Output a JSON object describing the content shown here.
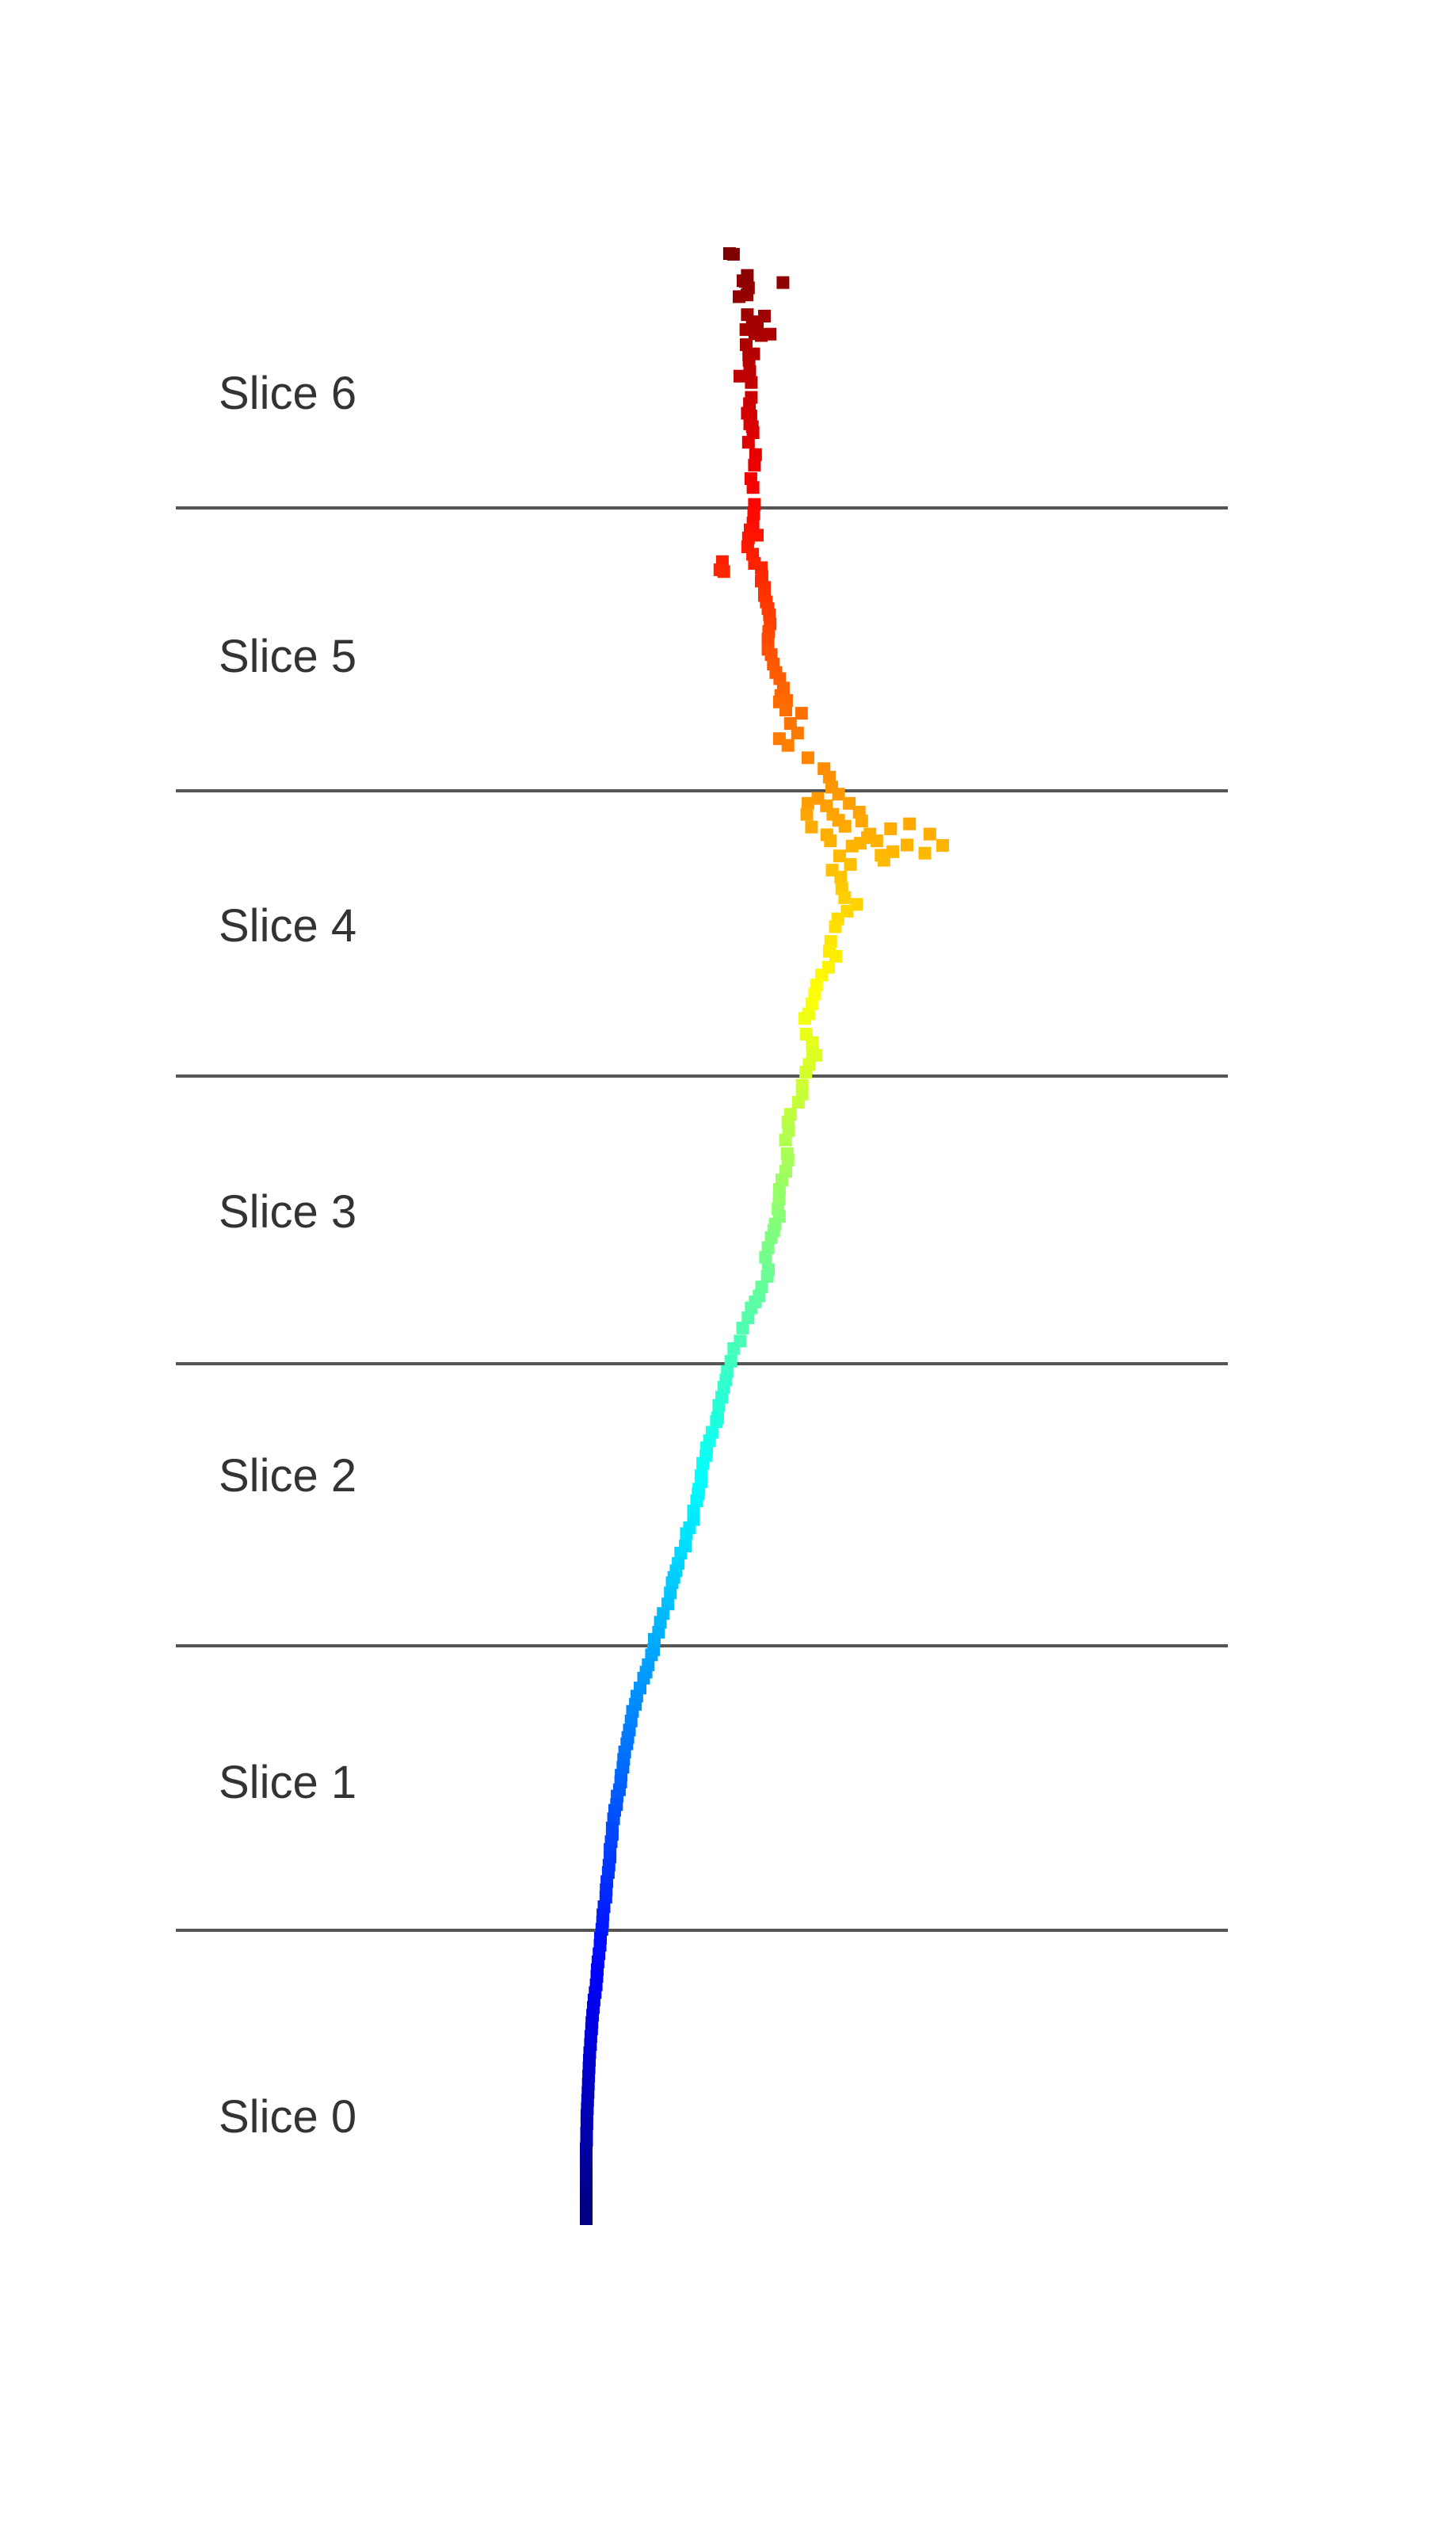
{
  "slices": [
    {
      "label": "Slice 6"
    },
    {
      "label": "Slice 5"
    },
    {
      "label": "Slice 4"
    },
    {
      "label": "Slice 3"
    },
    {
      "label": "Slice 2"
    },
    {
      "label": "Slice 1"
    },
    {
      "label": "Slice 0"
    }
  ],
  "chart_data": {
    "type": "scatter",
    "colormap": "jet (dark blue at bottom to dark red at top)",
    "grid": false,
    "axes_visible": false,
    "points": [
      [
        0.402,
        0.038
      ],
      [
        0.413,
        0.04
      ],
      [
        0.44,
        0.115
      ],
      [
        0.429,
        0.16
      ],
      [
        0.447,
        0.117
      ],
      [
        0.451,
        0.155
      ],
      [
        0.455,
        0.135
      ],
      [
        0.452,
        0.1
      ],
      [
        0.552,
        0.12
      ],
      [
        0.5,
        0.215
      ],
      [
        0.516,
        0.266
      ],
      [
        0.491,
        0.27
      ],
      [
        0.473,
        0.265
      ],
      [
        0.48,
        0.241
      ],
      [
        0.466,
        0.231
      ],
      [
        0.452,
        0.211
      ],
      [
        0.448,
        0.253
      ],
      [
        0.449,
        0.296
      ],
      [
        0.456,
        0.325
      ],
      [
        0.47,
        0.322
      ],
      [
        0.431,
        0.385
      ],
      [
        0.457,
        0.34
      ],
      [
        0.459,
        0.372
      ],
      [
        0.463,
        0.403
      ],
      [
        0.463,
        0.445
      ],
      [
        0.458,
        0.463
      ],
      [
        0.452,
        0.49
      ],
      [
        0.462,
        0.498
      ],
      [
        0.459,
        0.52
      ],
      [
        0.466,
        0.528
      ],
      [
        0.468,
        0.545
      ],
      [
        0.455,
        0.572
      ],
      [
        0.475,
        0.607
      ],
      [
        0.472,
        0.637
      ],
      [
        0.462,
        0.675
      ],
      [
        0.468,
        0.7
      ],
      [
        0.472,
        0.748
      ],
      [
        0.47,
        0.775
      ],
      [
        0.468,
        0.8
      ],
      [
        0.48,
        0.835
      ],
      [
        0.46,
        0.82
      ],
      [
        0.455,
        0.843
      ],
      [
        0.453,
        0.868
      ],
      [
        0.467,
        0.889
      ],
      [
        0.382,
        0.91
      ],
      [
        0.375,
        0.933
      ],
      [
        0.386,
        0.938
      ],
      [
        0.472,
        0.915
      ],
      [
        0.491,
        0.927
      ],
      [
        0.493,
        0.952
      ],
      [
        0.491,
        0.965
      ],
      [
        0.5,
        0.983
      ],
      [
        0.5,
        1.006
      ],
      [
        0.505,
        1.024
      ],
      [
        0.51,
        1.043
      ],
      [
        0.514,
        1.06
      ],
      [
        0.516,
        1.086
      ],
      [
        0.512,
        1.108
      ],
      [
        0.51,
        1.129
      ],
      [
        0.51,
        1.158
      ],
      [
        0.519,
        1.173
      ],
      [
        0.525,
        1.2
      ],
      [
        0.532,
        1.224
      ],
      [
        0.543,
        1.241
      ],
      [
        0.553,
        1.268
      ],
      [
        0.546,
        1.289
      ],
      [
        0.562,
        1.303
      ],
      [
        0.604,
        1.339
      ],
      [
        0.542,
        1.307
      ],
      [
        0.56,
        1.33
      ],
      [
        0.573,
        1.368
      ],
      [
        0.593,
        1.395
      ],
      [
        0.542,
        1.411
      ],
      [
        0.566,
        1.43
      ],
      [
        0.622,
        1.465
      ],
      [
        0.667,
        1.496
      ],
      [
        0.682,
        1.52
      ],
      [
        0.689,
        1.548
      ],
      [
        0.708,
        1.568
      ],
      [
        0.738,
        1.594
      ],
      [
        0.766,
        1.619
      ],
      [
        0.773,
        1.644
      ],
      [
        0.726,
        1.659
      ],
      [
        0.708,
        1.642
      ],
      [
        0.692,
        1.625
      ],
      [
        0.674,
        1.601
      ],
      [
        0.65,
        1.58
      ],
      [
        0.622,
        1.594
      ],
      [
        0.619,
        1.625
      ],
      [
        0.632,
        1.661
      ],
      [
        0.675,
        1.683
      ],
      [
        0.685,
        1.7
      ],
      [
        0.711,
        1.743
      ],
      [
        0.746,
        1.715
      ],
      [
        0.789,
        1.691
      ],
      [
        0.854,
        1.666
      ],
      [
        0.907,
        1.652
      ],
      [
        0.964,
        1.681
      ],
      [
        1.0,
        1.713
      ],
      [
        0.95,
        1.735
      ],
      [
        0.9,
        1.712
      ],
      [
        0.86,
        1.731
      ],
      [
        0.835,
        1.755
      ],
      [
        0.827,
        1.741
      ],
      [
        0.815,
        1.7
      ],
      [
        0.796,
        1.681
      ],
      [
        0.769,
        1.707
      ],
      [
        0.741,
        1.767
      ],
      [
        0.69,
        1.783
      ],
      [
        0.714,
        1.803
      ],
      [
        0.717,
        1.835
      ],
      [
        0.725,
        1.861
      ],
      [
        0.759,
        1.88
      ],
      [
        0.732,
        1.899
      ],
      [
        0.706,
        1.921
      ],
      [
        0.699,
        1.943
      ],
      [
        0.686,
        1.985
      ],
      [
        0.682,
        2.013
      ],
      [
        0.7,
        2.027
      ],
      [
        0.68,
        2.058
      ],
      [
        0.66,
        2.08
      ],
      [
        0.646,
        2.108
      ],
      [
        0.641,
        2.134
      ],
      [
        0.633,
        2.161
      ],
      [
        0.624,
        2.19
      ],
      [
        0.613,
        2.203
      ],
      [
        0.617,
        2.247
      ],
      [
        0.634,
        2.271
      ],
      [
        0.635,
        2.302
      ],
      [
        0.645,
        2.307
      ],
      [
        0.625,
        2.333
      ],
      [
        0.616,
        2.355
      ],
      [
        0.606,
        2.392
      ],
      [
        0.606,
        2.417
      ],
      [
        0.595,
        2.44
      ],
      [
        0.573,
        2.474
      ],
      [
        0.566,
        2.496
      ],
      [
        0.568,
        2.52
      ],
      [
        0.559,
        2.547
      ],
      [
        0.564,
        2.586
      ],
      [
        0.566,
        2.603
      ],
      [
        0.56,
        2.635
      ],
      [
        0.549,
        2.66
      ],
      [
        0.542,
        2.687
      ],
      [
        0.541,
        2.714
      ],
      [
        0.538,
        2.742
      ],
      [
        0.542,
        2.763
      ],
      [
        0.53,
        2.785
      ],
      [
        0.526,
        2.804
      ],
      [
        0.519,
        2.823
      ],
      [
        0.51,
        2.852
      ],
      [
        0.503,
        2.879
      ],
      [
        0.511,
        2.914
      ],
      [
        0.508,
        2.933
      ],
      [
        0.492,
        2.963
      ],
      [
        0.485,
        2.988
      ],
      [
        0.474,
        3.005
      ],
      [
        0.463,
        3.022
      ],
      [
        0.454,
        3.05
      ],
      [
        0.439,
        3.079
      ],
      [
        0.432,
        3.116
      ],
      [
        0.414,
        3.137
      ],
      [
        0.406,
        3.173
      ],
      [
        0.396,
        3.202
      ],
      [
        0.392,
        3.226
      ],
      [
        0.386,
        3.247
      ],
      [
        0.38,
        3.275
      ],
      [
        0.372,
        3.298
      ],
      [
        0.369,
        3.333
      ],
      [
        0.365,
        3.344
      ],
      [
        0.353,
        3.374
      ],
      [
        0.346,
        3.398
      ],
      [
        0.338,
        3.418
      ],
      [
        0.336,
        3.44
      ],
      [
        0.327,
        3.462
      ],
      [
        0.322,
        3.497
      ],
      [
        0.322,
        3.514
      ],
      [
        0.316,
        3.535
      ],
      [
        0.314,
        3.549
      ],
      [
        0.31,
        3.568
      ],
      [
        0.301,
        3.597
      ],
      [
        0.301,
        3.621
      ],
      [
        0.29,
        3.644
      ],
      [
        0.281,
        3.661
      ],
      [
        0.278,
        3.696
      ],
      [
        0.265,
        3.716
      ],
      [
        0.258,
        3.745
      ],
      [
        0.252,
        3.766
      ],
      [
        0.246,
        3.785
      ],
      [
        0.241,
        3.8
      ],
      [
        0.236,
        3.829
      ],
      [
        0.229,
        3.86
      ],
      [
        0.216,
        3.887
      ],
      [
        0.208,
        3.912
      ],
      [
        0.203,
        3.94
      ],
      [
        0.191,
        3.96
      ],
      [
        0.189,
        3.99
      ],
      [
        0.183,
        4.004
      ],
      [
        0.174,
        4.032
      ],
      [
        0.168,
        4.053
      ],
      [
        0.161,
        4.07
      ],
      [
        0.151,
        4.098
      ],
      [
        0.142,
        4.121
      ],
      [
        0.138,
        4.144
      ],
      [
        0.13,
        4.164
      ],
      [
        0.126,
        4.191
      ],
      [
        0.121,
        4.217
      ],
      [
        0.117,
        4.238
      ],
      [
        0.114,
        4.256
      ],
      [
        0.108,
        4.279
      ],
      [
        0.105,
        4.3
      ],
      [
        0.103,
        4.322
      ],
      [
        0.098,
        4.345
      ],
      [
        0.097,
        4.364
      ],
      [
        0.093,
        4.386
      ],
      [
        0.087,
        4.404
      ],
      [
        0.085,
        4.428
      ],
      [
        0.08,
        4.444
      ],
      [
        0.077,
        4.468
      ],
      [
        0.073,
        4.494
      ],
      [
        0.073,
        4.512
      ],
      [
        0.07,
        4.533
      ],
      [
        0.067,
        4.555
      ],
      [
        0.067,
        4.576
      ],
      [
        0.064,
        4.599
      ],
      [
        0.062,
        4.62
      ],
      [
        0.058,
        4.646
      ],
      [
        0.056,
        4.669
      ],
      [
        0.055,
        4.69
      ],
      [
        0.05,
        4.717
      ],
      [
        0.047,
        4.74
      ],
      [
        0.046,
        4.76
      ],
      [
        0.044,
        4.781
      ],
      [
        0.04,
        4.806
      ],
      [
        0.039,
        4.826
      ],
      [
        0.036,
        4.85
      ],
      [
        0.033,
        4.873
      ],
      [
        0.031,
        4.895
      ],
      [
        0.03,
        4.914
      ],
      [
        0.028,
        4.938
      ],
      [
        0.025,
        4.96
      ],
      [
        0.022,
        4.981
      ],
      [
        0.02,
        5.002
      ],
      [
        0.018,
        5.024
      ],
      [
        0.016,
        5.045
      ],
      [
        0.015,
        5.063
      ],
      [
        0.013,
        5.084
      ],
      [
        0.012,
        5.107
      ],
      [
        0.01,
        5.13
      ],
      [
        0.009,
        5.152
      ],
      [
        0.008,
        5.173
      ],
      [
        0.007,
        5.196
      ],
      [
        0.006,
        5.219
      ],
      [
        0.005,
        5.243
      ],
      [
        0.004,
        5.265
      ],
      [
        0.003,
        5.289
      ],
      [
        0.002,
        5.308
      ],
      [
        0.002,
        5.331
      ],
      [
        0.001,
        5.357
      ],
      [
        0.001,
        5.378
      ],
      [
        0.0,
        5.402
      ],
      [
        0.0,
        5.425
      ],
      [
        0.0,
        5.446
      ],
      [
        0.0,
        5.47
      ],
      [
        0.0,
        5.492
      ],
      [
        0.0,
        5.515
      ],
      [
        0.0,
        5.535
      ],
      [
        0.0,
        5.56
      ],
      [
        0.0,
        5.58
      ],
      [
        0.0,
        5.6
      ]
    ]
  }
}
